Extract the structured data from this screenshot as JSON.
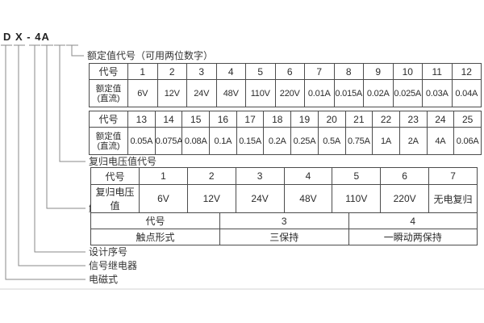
{
  "model": {
    "text": "D X - 4A"
  },
  "branch_labels": {
    "rated_value": "额定值代号（可用两位数字）",
    "reset_voltage": "复归电压值代号",
    "contact_combo": "触点组合代号",
    "design_serial": "设计序号",
    "signal_relay": "信号继电器",
    "electromagnetic": "电磁式"
  },
  "tables": {
    "rated1": {
      "code_label": "代号",
      "value_label_line1": "额定值",
      "value_label_line2": "(直流)",
      "codes": [
        "1",
        "2",
        "3",
        "4",
        "5",
        "6",
        "7",
        "8",
        "9",
        "10",
        "11",
        "12"
      ],
      "values": [
        "6V",
        "12V",
        "24V",
        "48V",
        "110V",
        "220V",
        "0.01A",
        "0.015A",
        "0.02A",
        "0.025A",
        "0.03A",
        "0.04A"
      ]
    },
    "rated2": {
      "code_label": "代号",
      "value_label_line1": "额定值",
      "value_label_line2": "(直流)",
      "codes": [
        "13",
        "14",
        "15",
        "16",
        "17",
        "18",
        "19",
        "20",
        "21",
        "22",
        "23",
        "24",
        "25"
      ],
      "values": [
        "0.05A",
        "0.075A",
        "0.08A",
        "0.1A",
        "0.15A",
        "0.2A",
        "0.25A",
        "0.5A",
        "0.75A",
        "1A",
        "2A",
        "4A",
        "0.06A"
      ]
    },
    "reset": {
      "code_label": "代号",
      "value_label": "复归电压值",
      "codes": [
        "1",
        "2",
        "3",
        "4",
        "5",
        "6",
        "7"
      ],
      "values": [
        "6V",
        "12V",
        "24V",
        "48V",
        "110V",
        "220V",
        "无电复归"
      ]
    },
    "contact": {
      "code_label": "代号",
      "value_label": "触点形式",
      "codes": [
        "3",
        "4"
      ],
      "values": [
        "三保持",
        "一瞬动两保持"
      ]
    }
  },
  "colors": {
    "table_border": "#4c4c4c",
    "connector_line": "#8a8a8a",
    "text": "#2b2b2b",
    "divider": "#e8e8e8"
  }
}
